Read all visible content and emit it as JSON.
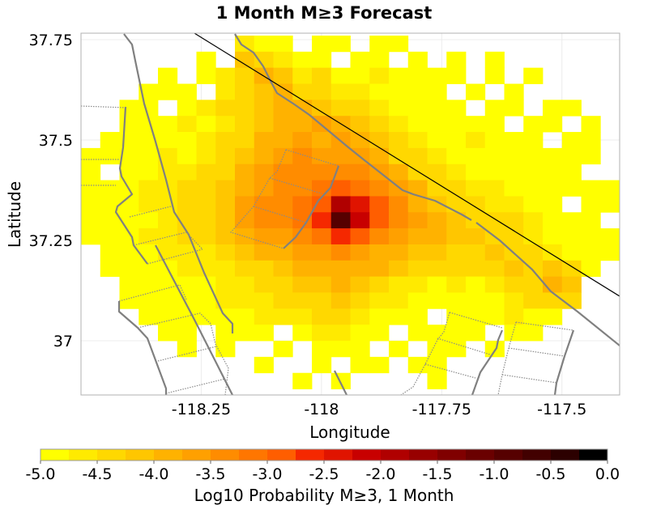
{
  "chart_data": {
    "type": "heatmap",
    "title": "1 Month M≥3 Forecast",
    "xlabel": "Longitude",
    "ylabel": "Latitude",
    "xlim": [
      -118.5,
      -117.38
    ],
    "ylim": [
      36.865,
      37.766
    ],
    "xticks": [
      {
        "value": -118.25,
        "label": "-118.25"
      },
      {
        "value": -118,
        "label": "-118"
      },
      {
        "value": -117.75,
        "label": "-117.75"
      },
      {
        "value": -117.5,
        "label": "-117.5"
      }
    ],
    "yticks": [
      {
        "value": 37.75,
        "label": "37.75"
      },
      {
        "value": 37.5,
        "label": "37.5"
      },
      {
        "value": 37.25,
        "label": "37.25"
      },
      {
        "value": 37,
        "label": "37"
      }
    ],
    "grid": true,
    "cell_size_deg": 0.04,
    "x": [
      -118.48,
      -118.44,
      -118.4,
      -118.36,
      -118.32,
      -118.28,
      -118.24,
      -118.2,
      -118.16,
      -118.12,
      -118.08,
      -118.04,
      -118.0,
      -117.96,
      -117.92,
      -117.88,
      -117.84,
      -117.8,
      -117.76,
      -117.72,
      -117.68,
      -117.64,
      -117.6,
      -117.56,
      -117.52,
      -117.48,
      -117.44,
      -117.4
    ],
    "y": [
      37.74,
      37.7,
      37.66,
      37.62,
      37.58,
      37.54,
      37.5,
      37.46,
      37.42,
      37.38,
      37.34,
      37.3,
      37.26,
      37.22,
      37.18,
      37.14,
      37.1,
      37.06,
      37.02,
      36.98,
      36.94,
      36.9
    ],
    "z": [
      [
        null,
        null,
        null,
        null,
        null,
        null,
        null,
        null,
        -4.6,
        -4.8,
        -4.9,
        null,
        -4.9,
        -4.9,
        null,
        -4.9,
        -4.9,
        null,
        null,
        null,
        null,
        null,
        null,
        null,
        null,
        null,
        null,
        null
      ],
      [
        null,
        null,
        null,
        null,
        null,
        null,
        -4.9,
        null,
        -4.1,
        -4.3,
        -4.6,
        -4.8,
        -4.9,
        null,
        -4.9,
        -4.8,
        null,
        -4.9,
        null,
        -4.9,
        null,
        -4.9,
        null,
        null,
        null,
        null,
        null,
        null
      ],
      [
        null,
        null,
        null,
        null,
        -4.9,
        null,
        -4.8,
        -4.7,
        -4.3,
        -4.0,
        -4.2,
        -4.6,
        -4.5,
        -4.8,
        -4.9,
        -4.7,
        -4.9,
        -4.8,
        -4.9,
        -4.9,
        null,
        -4.9,
        null,
        -4.9,
        null,
        null,
        null,
        null
      ],
      [
        null,
        null,
        null,
        -4.9,
        -4.8,
        -4.9,
        null,
        -4.6,
        -4.4,
        -4.2,
        -3.9,
        -4.3,
        -4.5,
        -4.6,
        -4.7,
        -4.8,
        -4.9,
        -4.8,
        -4.9,
        null,
        -4.9,
        null,
        -4.9,
        null,
        null,
        null,
        null,
        null
      ],
      [
        null,
        null,
        -4.9,
        -4.9,
        null,
        -4.8,
        -4.7,
        -4.5,
        -4.4,
        -4.2,
        -4.0,
        -3.8,
        -4.1,
        -4.3,
        -4.5,
        -4.7,
        -4.8,
        -4.9,
        -4.9,
        -4.8,
        null,
        -4.9,
        -4.9,
        null,
        -4.9,
        -4.9,
        null,
        null
      ],
      [
        null,
        null,
        -4.9,
        -4.8,
        -4.9,
        -4.7,
        -4.8,
        -4.6,
        -4.4,
        -4.2,
        -4.0,
        -3.9,
        -3.7,
        -4.0,
        -4.2,
        -4.5,
        -4.6,
        -4.8,
        -4.9,
        -4.9,
        -4.8,
        -4.9,
        null,
        -4.9,
        -4.9,
        null,
        -4.9,
        null
      ],
      [
        null,
        -4.9,
        -4.8,
        -4.9,
        -4.8,
        -4.9,
        -4.7,
        -4.5,
        -4.3,
        -4.0,
        -3.8,
        -3.7,
        -3.8,
        -3.6,
        -3.9,
        -4.2,
        -4.4,
        -4.6,
        -4.8,
        -4.9,
        -4.7,
        -4.8,
        -4.9,
        -4.9,
        null,
        -4.9,
        -4.9,
        null
      ],
      [
        -4.9,
        -4.9,
        -4.8,
        -4.9,
        -4.7,
        -4.8,
        -4.6,
        -4.4,
        -4.2,
        -3.9,
        -3.6,
        -3.5,
        -3.6,
        -3.6,
        -3.7,
        -4.0,
        -4.3,
        -4.5,
        -4.7,
        -4.8,
        -4.8,
        -4.9,
        -4.8,
        -4.9,
        -4.9,
        -4.9,
        -4.9,
        null
      ],
      [
        -4.9,
        null,
        -4.9,
        -4.8,
        -4.7,
        -4.6,
        -4.5,
        -4.3,
        -4.0,
        -3.7,
        -3.5,
        -3.4,
        -3.4,
        -3.3,
        -3.4,
        -3.7,
        -4.0,
        -4.3,
        -4.5,
        -4.7,
        -4.8,
        -4.8,
        -4.9,
        -4.8,
        -4.9,
        -4.9,
        null,
        null
      ],
      [
        -4.9,
        -4.8,
        -4.9,
        -4.7,
        -4.6,
        -4.5,
        -4.4,
        -4.2,
        -3.9,
        -3.6,
        -3.5,
        -3.3,
        -3.1,
        -2.9,
        -3.1,
        -3.4,
        -3.7,
        -4.0,
        -4.3,
        -4.5,
        -4.6,
        -4.7,
        -4.8,
        -4.8,
        -4.9,
        -4.9,
        -4.9,
        -4.9
      ],
      [
        -4.9,
        -4.9,
        -4.8,
        -4.7,
        -4.6,
        -4.5,
        -4.3,
        -4.1,
        -3.7,
        -3.5,
        -3.4,
        -3.2,
        -2.8,
        -1.8,
        -2.3,
        -3.0,
        -3.5,
        -3.8,
        -4.1,
        -4.3,
        -4.4,
        -4.6,
        -4.7,
        -4.8,
        -4.9,
        null,
        -4.9,
        -4.9
      ],
      [
        -4.9,
        -4.8,
        -4.9,
        -4.8,
        -4.6,
        -4.5,
        -4.4,
        -4.1,
        -3.7,
        -3.5,
        -3.4,
        -3.2,
        -2.7,
        -0.9,
        -2.2,
        -3.0,
        -3.4,
        -3.7,
        -3.9,
        -4.1,
        -4.3,
        -4.4,
        -4.5,
        -4.7,
        -4.8,
        -4.9,
        -4.9,
        null
      ],
      [
        -4.9,
        -4.8,
        -4.8,
        -4.7,
        -4.7,
        -4.5,
        -4.5,
        -4.2,
        -3.9,
        -3.7,
        -3.6,
        -3.4,
        -3.1,
        -2.7,
        -3.0,
        -3.3,
        -3.6,
        -3.8,
        -3.9,
        -4.1,
        -4.2,
        -4.3,
        -4.4,
        -4.6,
        -4.8,
        -4.9,
        -4.9,
        -4.9
      ],
      [
        null,
        -4.9,
        -4.8,
        -4.9,
        -4.7,
        -4.6,
        -4.6,
        -4.4,
        -4.2,
        -4.0,
        -3.9,
        -3.7,
        -3.6,
        -3.5,
        -3.6,
        -3.8,
        -4.0,
        -4.1,
        -4.2,
        -4.3,
        -4.3,
        -4.2,
        -4.3,
        -4.5,
        -4.7,
        -4.8,
        -4.9,
        -4.9
      ],
      [
        null,
        -4.9,
        -4.9,
        -4.8,
        -4.8,
        -4.7,
        -4.7,
        -4.6,
        -4.4,
        -4.3,
        -4.1,
        -4.0,
        -3.9,
        -3.8,
        -3.9,
        -4.0,
        -4.2,
        -4.4,
        -4.5,
        -4.4,
        -4.5,
        -4.3,
        -4.2,
        -4.3,
        -4.1,
        -4.5,
        -4.9,
        null
      ],
      [
        null,
        null,
        -4.9,
        -4.8,
        -4.9,
        -4.8,
        -4.8,
        -4.7,
        -4.6,
        -4.5,
        -4.4,
        -4.2,
        -4.1,
        -4.0,
        -4.2,
        -4.4,
        -4.6,
        -4.7,
        -4.8,
        -4.7,
        -4.8,
        -4.6,
        -4.4,
        -4.3,
        -4.0,
        -4.1,
        null,
        null
      ],
      [
        null,
        null,
        -4.9,
        -4.8,
        -4.9,
        -4.9,
        -4.8,
        -4.7,
        -4.7,
        -4.6,
        -4.5,
        -4.4,
        -4.3,
        -4.2,
        -4.3,
        -4.6,
        -4.7,
        -4.8,
        -4.9,
        -4.8,
        -4.9,
        -4.8,
        -4.6,
        -4.5,
        -4.3,
        -4.4,
        null,
        null
      ],
      [
        null,
        null,
        null,
        -4.9,
        -4.8,
        -4.9,
        -4.8,
        -4.9,
        -4.8,
        -4.7,
        -4.6,
        -4.6,
        -4.5,
        -4.5,
        -4.6,
        -4.8,
        -4.9,
        -4.9,
        null,
        -4.9,
        -4.9,
        -4.8,
        -4.7,
        -4.8,
        -4.9,
        null,
        null,
        null
      ],
      [
        null,
        null,
        null,
        null,
        -4.9,
        -4.9,
        null,
        -4.9,
        -4.9,
        -4.8,
        null,
        -4.8,
        -4.7,
        -4.7,
        -4.8,
        -4.9,
        null,
        -4.9,
        -4.9,
        -4.9,
        -4.9,
        null,
        -4.9,
        -4.9,
        null,
        null,
        null,
        null
      ],
      [
        null,
        null,
        null,
        null,
        null,
        -4.9,
        null,
        -4.9,
        null,
        null,
        -4.9,
        null,
        -4.9,
        -4.8,
        -4.9,
        null,
        -4.9,
        null,
        -4.9,
        -4.9,
        null,
        -4.9,
        null,
        null,
        null,
        null,
        null,
        null
      ],
      [
        null,
        null,
        null,
        null,
        null,
        null,
        null,
        null,
        null,
        -4.9,
        null,
        null,
        -4.9,
        null,
        -4.9,
        -4.9,
        null,
        -4.9,
        -4.9,
        null,
        null,
        null,
        null,
        null,
        null,
        null,
        null,
        null
      ],
      [
        null,
        null,
        null,
        null,
        null,
        null,
        null,
        null,
        null,
        null,
        null,
        -4.9,
        null,
        -4.9,
        null,
        null,
        null,
        null,
        -4.9,
        null,
        null,
        null,
        null,
        null,
        null,
        null,
        null,
        null
      ]
    ],
    "colorbar": {
      "label": "Log10 Probability M≥3, 1 Month",
      "range": [
        -5.0,
        0.0
      ],
      "step": 0.25,
      "ticks": [
        "-5.0",
        "-4.5",
        "-4.0",
        "-3.5",
        "-3.0",
        "-2.5",
        "-2.0",
        "-1.5",
        "-1.0",
        "-0.5",
        "0.0"
      ],
      "colors": [
        "#ffff00",
        "#ffea00",
        "#ffd800",
        "#ffc600",
        "#ffb200",
        "#ffa000",
        "#ff8c00",
        "#ff7600",
        "#ff5e00",
        "#f52800",
        "#e01400",
        "#c80000",
        "#b00000",
        "#980000",
        "#800000",
        "#6a0000",
        "#560000",
        "#420000",
        "#2c0000",
        "#000000"
      ]
    }
  }
}
